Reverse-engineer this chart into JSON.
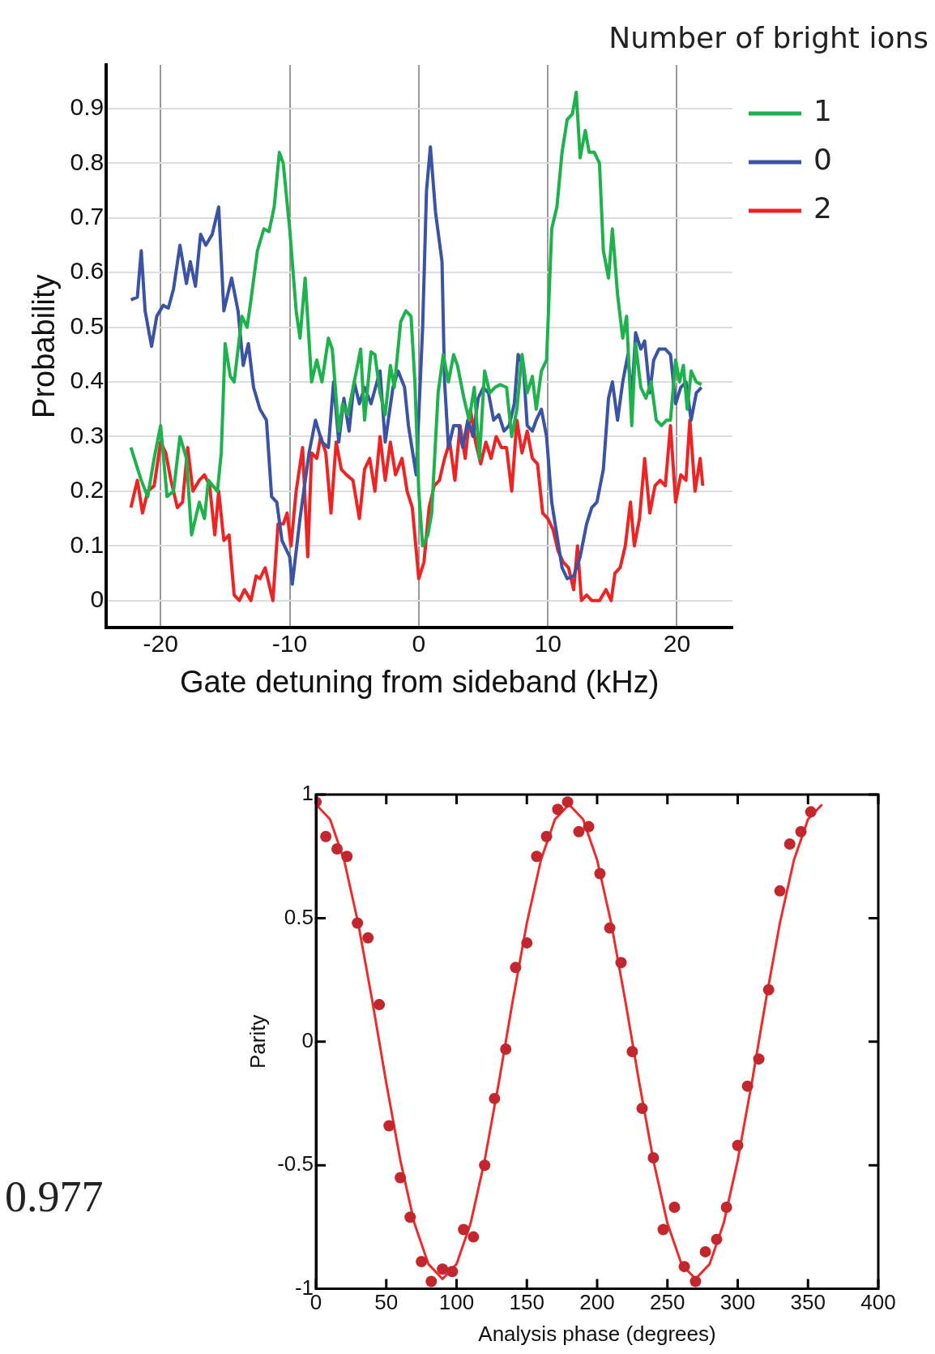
{
  "chart_data": [
    {
      "type": "line",
      "xlabel": "Gate detuning from sideband (kHz)",
      "ylabel": "Probability",
      "legend_title": "Number of bright ions",
      "legend": "right",
      "grid": true,
      "xlim": [
        -24.2,
        24.3
      ],
      "ylim": [
        -0.05,
        0.98
      ],
      "xticks": [
        -20,
        -10,
        0,
        10,
        20
      ],
      "yticks": [
        0,
        0.1,
        0.2,
        0.3,
        0.4,
        0.5,
        0.6,
        0.7,
        0.8,
        0.9
      ],
      "series": [
        {
          "name": "1",
          "color": "#1db24b",
          "x": [
            -22.3,
            -21.5,
            -21,
            -20.5,
            -20,
            -19.5,
            -19,
            -18.5,
            -18,
            -17.6,
            -17,
            -16.6,
            -16.3,
            -15.6,
            -15.3,
            -15,
            -14.6,
            -14.3,
            -13.7,
            -13.3,
            -13,
            -12.5,
            -12,
            -11.6,
            -11.2,
            -10.8,
            -10.5,
            -10,
            -9.5,
            -9.2,
            -8.8,
            -8.3,
            -7.9,
            -7.5,
            -7,
            -6.7,
            -6.2,
            -5.9,
            -5.5,
            -5,
            -4.5,
            -4.2,
            -3.7,
            -3.4,
            -3,
            -2.6,
            -2.2,
            -1.9,
            -1.4,
            -1,
            -0.6,
            -0.3,
            0,
            0.3,
            0.7,
            1,
            1.5,
            1.9,
            2.3,
            2.7,
            3,
            3.5,
            3.9,
            4.3,
            4.7,
            5.1,
            5.5,
            5.9,
            6.3,
            6.8,
            7.2,
            7.6,
            8,
            8.4,
            8.8,
            9.1,
            9.5,
            9.9,
            10.3,
            10.7,
            11.1,
            11.5,
            11.9,
            12.2,
            12.5,
            12.9,
            13.2,
            13.6,
            14,
            14.3,
            14.7,
            15,
            15.4,
            15.8,
            16.1,
            16.5,
            16.8,
            17.2,
            17.6,
            18,
            18.4,
            18.8,
            19.2,
            19.5,
            19.9,
            20.2,
            20.5,
            20.8,
            21.1,
            21.5,
            21.9
          ],
          "values": [
            0.28,
            0.22,
            0.19,
            0.26,
            0.32,
            0.19,
            0.2,
            0.3,
            0.26,
            0.12,
            0.18,
            0.15,
            0.22,
            0.2,
            0.27,
            0.47,
            0.41,
            0.4,
            0.52,
            0.5,
            0.55,
            0.64,
            0.68,
            0.675,
            0.72,
            0.82,
            0.8,
            0.68,
            0.53,
            0.48,
            0.59,
            0.4,
            0.44,
            0.4,
            0.48,
            0.46,
            0.31,
            0.36,
            0.34,
            0.4,
            0.46,
            0.33,
            0.455,
            0.45,
            0.38,
            0.34,
            0.43,
            0.39,
            0.51,
            0.53,
            0.52,
            0.4,
            0.2,
            0.1,
            0.12,
            0.16,
            0.38,
            0.45,
            0.4,
            0.45,
            0.43,
            0.37,
            0.33,
            0.39,
            0.26,
            0.42,
            0.38,
            0.39,
            0.395,
            0.39,
            0.3,
            0.35,
            0.45,
            0.38,
            0.41,
            0.35,
            0.42,
            0.44,
            0.68,
            0.72,
            0.82,
            0.88,
            0.89,
            0.93,
            0.81,
            0.86,
            0.82,
            0.82,
            0.8,
            0.64,
            0.59,
            0.68,
            0.56,
            0.48,
            0.52,
            0.32,
            0.47,
            0.39,
            0.37,
            0.4,
            0.33,
            0.32,
            0.33,
            0.33,
            0.44,
            0.4,
            0.43,
            0.35,
            0.42,
            0.4,
            0.395
          ]
        },
        {
          "name": "0",
          "color": "#3a53a4",
          "x": [
            -22.3,
            -21.8,
            -21.5,
            -21.2,
            -20.7,
            -20.3,
            -19.8,
            -19.4,
            -19,
            -18.5,
            -18,
            -17.7,
            -17.3,
            -16.9,
            -16.5,
            -16,
            -15.5,
            -15.1,
            -14.5,
            -14,
            -13.6,
            -13.2,
            -12.8,
            -12.3,
            -11.8,
            -11.4,
            -11,
            -10.6,
            -10,
            -9.8,
            -9.2,
            -8.5,
            -8,
            -7.5,
            -7,
            -6.6,
            -6.2,
            -5.8,
            -5.4,
            -5,
            -4.6,
            -4.2,
            -3.7,
            -3,
            -2.6,
            -2,
            -1.6,
            -1.1,
            -0.8,
            -0.2,
            0.3,
            0.6,
            0.9,
            1.3,
            1.8,
            2,
            2.3,
            2.7,
            3.1,
            3.4,
            3.8,
            4.2,
            4.6,
            5,
            5.4,
            5.8,
            6.2,
            6.6,
            7,
            7.4,
            7.7,
            8.1,
            8.4,
            8.8,
            9.1,
            9.5,
            9.9,
            10.3,
            10.7,
            11.1,
            11.5,
            12,
            12.5,
            13,
            13.4,
            13.8,
            14.3,
            14.7,
            15,
            15.4,
            15.8,
            16.2,
            16.5,
            16.8,
            17.2,
            17.5,
            17.9,
            18.2,
            18.6,
            19.1,
            19.5,
            19.9,
            20.3,
            20.7,
            21.1,
            21.5,
            21.9
          ],
          "values": [
            0.55,
            0.555,
            0.64,
            0.53,
            0.465,
            0.52,
            0.54,
            0.535,
            0.57,
            0.65,
            0.58,
            0.62,
            0.575,
            0.67,
            0.65,
            0.67,
            0.72,
            0.53,
            0.59,
            0.53,
            0.43,
            0.47,
            0.39,
            0.35,
            0.33,
            0.19,
            0.18,
            0.11,
            0.08,
            0.03,
            0.15,
            0.27,
            0.33,
            0.29,
            0.28,
            0.4,
            0.29,
            0.37,
            0.31,
            0.4,
            0.36,
            0.39,
            0.36,
            0.42,
            0.29,
            0.39,
            0.42,
            0.39,
            0.32,
            0.23,
            0.5,
            0.75,
            0.83,
            0.71,
            0.62,
            0.4,
            0.28,
            0.32,
            0.32,
            0.28,
            0.33,
            0.3,
            0.37,
            0.39,
            0.38,
            0.33,
            0.34,
            0.31,
            0.32,
            0.36,
            0.45,
            0.43,
            0.32,
            0.31,
            0.33,
            0.35,
            0.3,
            0.18,
            0.12,
            0.06,
            0.04,
            0.045,
            0.08,
            0.14,
            0.17,
            0.18,
            0.24,
            0.37,
            0.4,
            0.33,
            0.4,
            0.45,
            0.37,
            0.49,
            0.46,
            0.475,
            0.38,
            0.44,
            0.46,
            0.46,
            0.45,
            0.36,
            0.39,
            0.4,
            0.33,
            0.38,
            0.39
          ]
        },
        {
          "name": "2",
          "color": "#ee2424",
          "x": [
            -22.3,
            -21.8,
            -21.4,
            -21,
            -20.5,
            -20,
            -19.6,
            -19.2,
            -18.7,
            -18.3,
            -17.9,
            -17.5,
            -17,
            -16.6,
            -16.2,
            -15.8,
            -15.5,
            -15.1,
            -14.7,
            -14.3,
            -13.9,
            -13.5,
            -13,
            -12.6,
            -12.3,
            -11.9,
            -11.3,
            -10.9,
            -10.5,
            -10.2,
            -9.9,
            -9.5,
            -9,
            -8.6,
            -8.3,
            -7.9,
            -7.6,
            -7.2,
            -6.8,
            -6.4,
            -6,
            -5.6,
            -5.1,
            -4.6,
            -4.2,
            -3.8,
            -3.4,
            -3,
            -2.6,
            -2.2,
            -1.8,
            -1.3,
            -0.9,
            -0.5,
            0,
            0.4,
            0.8,
            1.2,
            1.6,
            2,
            2.4,
            2.8,
            3.2,
            3.6,
            4,
            4.4,
            4.8,
            5.2,
            5.6,
            6,
            6.4,
            6.8,
            7.2,
            7.6,
            8,
            8.4,
            8.8,
            9.2,
            9.6,
            10,
            10.4,
            10.8,
            11.2,
            11.6,
            12,
            12.3,
            12.6,
            13,
            13.4,
            14,
            14.5,
            14.9,
            15.2,
            15.6,
            16,
            16.4,
            16.7,
            17.1,
            17.5,
            17.9,
            18.3,
            18.7,
            19.1,
            19.5,
            19.9,
            20.3,
            20.7,
            21,
            21.4,
            21.8,
            22
          ],
          "values": [
            0.17,
            0.22,
            0.16,
            0.2,
            0.21,
            0.29,
            0.27,
            0.22,
            0.17,
            0.18,
            0.28,
            0.2,
            0.22,
            0.23,
            0.21,
            0.12,
            0.2,
            0.11,
            0.12,
            0.01,
            0,
            0.02,
            0,
            0.045,
            0.04,
            0.06,
            0,
            0.14,
            0.14,
            0.16,
            0.1,
            0.2,
            0.28,
            0.08,
            0.27,
            0.26,
            0.3,
            0.27,
            0.16,
            0.29,
            0.24,
            0.23,
            0.22,
            0.15,
            0.24,
            0.26,
            0.2,
            0.3,
            0.22,
            0.29,
            0.23,
            0.26,
            0.2,
            0.17,
            0.04,
            0.07,
            0.17,
            0.21,
            0.22,
            0.26,
            0.29,
            0.22,
            0.32,
            0.26,
            0.35,
            0.29,
            0.25,
            0.29,
            0.26,
            0.3,
            0.28,
            0.28,
            0.2,
            0.33,
            0.27,
            0.31,
            0.26,
            0.25,
            0.16,
            0.15,
            0.13,
            0.09,
            0.07,
            0.06,
            0.02,
            0.1,
            0,
            0.01,
            0,
            0,
            0.02,
            0,
            0.05,
            0.06,
            0.1,
            0.18,
            0.1,
            0.15,
            0.26,
            0.16,
            0.21,
            0.22,
            0.21,
            0.32,
            0.18,
            0.23,
            0.22,
            0.33,
            0.2,
            0.26,
            0.21
          ]
        }
      ]
    },
    {
      "type": "scatter",
      "xlabel": "Analysis phase (degrees)",
      "ylabel": "Parity",
      "annotations": [
        "0.977"
      ],
      "xlim": [
        0,
        400
      ],
      "ylim": [
        -1,
        1
      ],
      "xticks": [
        0,
        50,
        100,
        150,
        200,
        250,
        300,
        350,
        400
      ],
      "yticks": [
        -1,
        -0.5,
        0,
        0.5,
        1
      ],
      "series": [
        {
          "marker": "circle",
          "color": "#c1272d",
          "x": [
            0,
            7,
            15,
            22,
            29.5,
            37,
            45,
            52,
            60,
            67,
            75,
            82,
            90,
            97,
            105,
            112,
            120,
            127,
            135,
            142,
            150,
            157,
            164,
            172,
            179,
            187,
            194,
            202,
            209,
            217,
            225,
            232,
            240,
            247,
            255,
            262,
            270,
            277,
            285,
            292,
            300,
            307,
            315,
            322,
            330,
            337,
            345,
            352
          ],
          "values": [
            0.97,
            0.83,
            0.78,
            0.75,
            0.48,
            0.42,
            0.15,
            -0.34,
            -0.55,
            -0.71,
            -0.89,
            -0.97,
            -0.92,
            -0.93,
            -0.76,
            -0.79,
            -0.5,
            -0.23,
            -0.03,
            0.3,
            0.4,
            0.75,
            0.83,
            0.94,
            0.97,
            0.85,
            0.87,
            0.68,
            0.46,
            0.32,
            -0.04,
            -0.27,
            -0.47,
            -0.76,
            -0.67,
            -0.91,
            -0.97,
            -0.85,
            -0.8,
            -0.67,
            -0.42,
            -0.18,
            -0.07,
            0.21,
            0.61,
            0.8,
            0.85,
            0.93
          ]
        },
        {
          "type": "line",
          "color": "#ee2a2a",
          "x": [
            0,
            10,
            20,
            30,
            40,
            50,
            60,
            70,
            80,
            90,
            100,
            110,
            120,
            130,
            140,
            150,
            160,
            170,
            180,
            190,
            200,
            210,
            220,
            230,
            240,
            250,
            260,
            270,
            280,
            290,
            300,
            310,
            320,
            330,
            340,
            350,
            360
          ],
          "values": [
            0.96,
            0.9,
            0.735,
            0.48,
            0.167,
            -0.167,
            -0.48,
            -0.735,
            -0.9,
            -0.96,
            -0.9,
            -0.735,
            -0.48,
            -0.167,
            0.167,
            0.48,
            0.735,
            0.9,
            0.96,
            0.9,
            0.735,
            0.48,
            0.167,
            -0.167,
            -0.48,
            -0.735,
            -0.9,
            -0.96,
            -0.9,
            -0.735,
            -0.48,
            -0.167,
            0.167,
            0.48,
            0.735,
            0.9,
            0.96
          ]
        }
      ]
    }
  ]
}
